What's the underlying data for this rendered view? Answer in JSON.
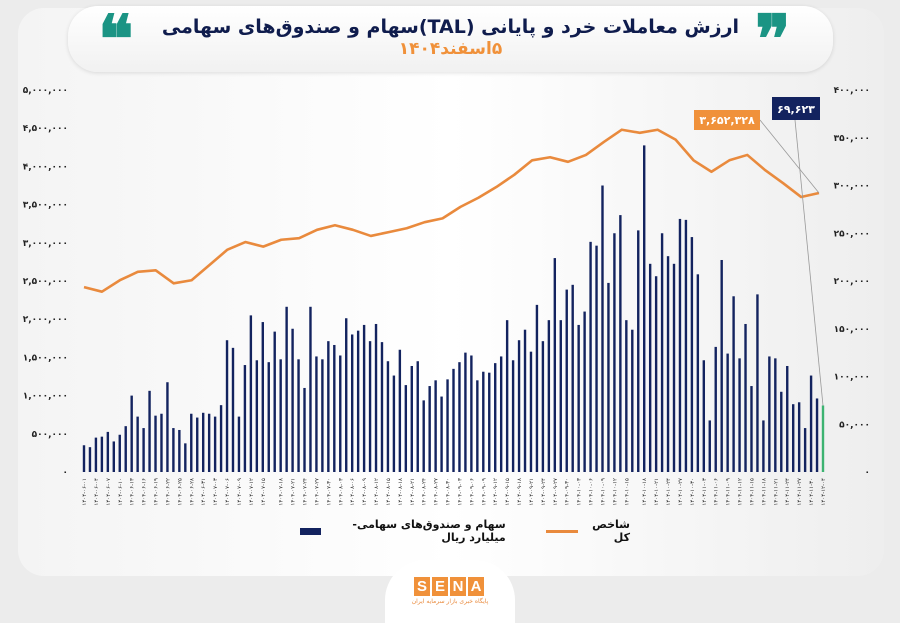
{
  "header": {
    "title": "ارزش معاملات خرد و پایانی (TAL)سهام و صندوق‌های سهامی",
    "subtitle": "۵اسفند۱۴۰۴",
    "quote_open": "❝",
    "quote_close": "❞"
  },
  "brand": {
    "logo_letters": [
      "S",
      "E",
      "N",
      "A"
    ],
    "logo_tagline": "پایگاه خبری بازار سرمایه ایران",
    "color": "#f0913a"
  },
  "colors": {
    "bars": "#13235f",
    "last_bar": "#3cb371",
    "line": "#e98a3d",
    "accent": "#1b9484",
    "callout_line_bg": "#f0913a",
    "callout_bar_bg": "#13235f"
  },
  "chart_data": {
    "type": "bar+line",
    "title": "ارزش معاملات خرد و پایانی (TAL)سهام و صندوق‌های سهامی",
    "legend": {
      "position": "bottom",
      "entries": [
        "شاخص کل",
        "سهام و صندوق‌های سهامی- میلیارد ریال"
      ]
    },
    "grid": false,
    "left_axis": {
      "range": [
        0,
        5000000
      ],
      "ticks": [
        "۰",
        "۵۰۰,۰۰۰",
        "۱,۰۰۰,۰۰۰",
        "۱,۵۰۰,۰۰۰",
        "۲,۰۰۰,۰۰۰",
        "۲,۵۰۰,۰۰۰",
        "۳,۰۰۰,۰۰۰",
        "۳,۵۰۰,۰۰۰",
        "۴,۰۰۰,۰۰۰",
        "۴,۵۰۰,۰۰۰",
        "۵,۰۰۰,۰۰۰"
      ]
    },
    "right_axis": {
      "range": [
        0,
        400000
      ],
      "ticks": [
        "۰",
        "۵۰,۰۰۰",
        "۱۰۰,۰۰۰",
        "۱۵۰,۰۰۰",
        "۲۰۰,۰۰۰",
        "۲۵۰,۰۰۰",
        "۳۰۰,۰۰۰",
        "۳۵۰,۰۰۰",
        "۴۰۰,۰۰۰"
      ]
    },
    "x_tick_labels": [
      "۱۴۰۴-۰۶-۰۱",
      "۱۴۰۴-۰۶-۰۴",
      "۱۴۰۴-۰۶-۰۷",
      "۱۴۰۴-۰۶-۱۰",
      "۱۴۰۴-۰۶-۱۳",
      "۱۴۰۴-۰۶-۱۶",
      "۱۴۰۴-۰۶-۱۹",
      "۱۴۰۴-۰۶-۲۲",
      "۱۴۰۴-۰۶-۲۵",
      "۱۴۰۴-۰۶-۲۸",
      "۱۴۰۴-۰۶-۳۱",
      "۱۴۰۴-۰۷-۰۳",
      "۱۴۰۴-۰۷-۰۶",
      "۱۴۰۴-۰۷-۰۹",
      "۱۴۰۴-۰۷-۱۲",
      "۱۴۰۴-۰۷-۱۵",
      "۱۴۰۴-۰۷-۱۸",
      "۱۴۰۴-۰۷-۲۱",
      "۱۴۰۴-۰۷-۲۴",
      "۱۴۰۴-۰۷-۲۷",
      "۱۴۰۴-۰۷-۳۰",
      "۱۴۰۴-۰۸-۰۳",
      "۱۴۰۴-۰۸-۰۶",
      "۱۴۰۴-۰۸-۰۹",
      "۱۴۰۴-۰۸-۱۲",
      "۱۴۰۴-۰۸-۱۵",
      "۱۴۰۴-۰۸-۱۸",
      "۱۴۰۴-۰۸-۲۱",
      "۱۴۰۴-۰۸-۲۴",
      "۱۴۰۴-۰۸-۲۷",
      "۱۴۰۴-۰۸-۳۰",
      "۱۴۰۴-۰۹-۰۳",
      "۱۴۰۴-۰۹-۰۶",
      "۱۴۰۴-۰۹-۰۹",
      "۱۴۰۴-۰۹-۱۲",
      "۱۴۰۴-۰۹-۱۵",
      "۱۴۰۴-۰۹-۱۸",
      "۱۴۰۴-۰۹-۲۱",
      "۱۴۰۴-۰۹-۲۴",
      "۱۴۰۴-۰۹-۲۷",
      "۱۴۰۴-۰۹-۳۰",
      "۱۴۰۴-۱۰-۰۳",
      "۱۴۰۴-۱۰-۰۶",
      "۱۴۰۴-۱۰-۰۹",
      "۱۴۰۴-۱۰-۱۲",
      "۱۴۰۴-۱۰-۱۵",
      "۱۴۰۴-۱۰-۱۸",
      "۱۴۰۴-۱۰-۲۱",
      "۱۴۰۴-۱۰-۲۴",
      "۱۴۰۴-۱۰-۲۷",
      "۱۴۰۴-۱۰-۳۰",
      "۱۴۰۴-۱۱-۰۳",
      "۱۴۰۴-۱۱-۰۶",
      "۱۴۰۴-۱۱-۰۹",
      "۱۴۰۴-۱۱-۱۲",
      "۱۴۰۴-۱۱-۱۵",
      "۱۴۰۴-۱۱-۱۸",
      "۱۴۰۴-۱۱-۲۱",
      "۱۴۰۴-۱۱-۲۴",
      "۱۴۰۴-۱۱-۲۷",
      "۱۴۰۴-۱۱-۳۰",
      "۱۴۰۴-۱۲-۰۴"
    ],
    "series": [
      {
        "name": "سهام و صندوق‌های سهامی- میلیارد ریال",
        "type": "bar",
        "axis": "right",
        "values": [
          28000,
          26000,
          36000,
          37000,
          42000,
          32000,
          39000,
          48000,
          80000,
          58000,
          46000,
          85000,
          59000,
          61000,
          94000,
          46000,
          44000,
          30000,
          61000,
          57000,
          62000,
          61000,
          58000,
          70000,
          138000,
          130000,
          58000,
          112000,
          164000,
          117000,
          157000,
          115000,
          147000,
          118000,
          173000,
          150000,
          118000,
          88000,
          173000,
          121000,
          118000,
          137000,
          133000,
          122000,
          161000,
          144000,
          148000,
          154000,
          137000,
          155000,
          136000,
          116000,
          101000,
          128000,
          91000,
          111000,
          116000,
          75000,
          90000,
          96000,
          79000,
          97000,
          108000,
          115000,
          125000,
          122000,
          96000,
          105000,
          104000,
          114000,
          121000,
          159000,
          117000,
          138000,
          149000,
          126000,
          175000,
          137000,
          159000,
          224000,
          159000,
          191000,
          196000,
          154000,
          168000,
          241000,
          237000,
          300000,
          198000,
          250000,
          269000,
          159000,
          149000,
          253000,
          342000,
          218000,
          205000,
          250000,
          226000,
          218000,
          265000,
          264000,
          246000,
          207000,
          117000,
          54000,
          131000,
          222000,
          124000,
          184000,
          119000,
          155000,
          90000,
          186000,
          54000,
          121000,
          119000,
          84000,
          111000,
          71000,
          73000,
          46000,
          101000,
          77000,
          69623
        ]
      },
      {
        "name": "شاخص کل",
        "type": "line",
        "axis": "left",
        "values": [
          2420000,
          2360000,
          2510000,
          2620000,
          2640000,
          2470000,
          2510000,
          2710000,
          2910000,
          3010000,
          2950000,
          3040000,
          3060000,
          3170000,
          3230000,
          3170000,
          3090000,
          3140000,
          3190000,
          3270000,
          3320000,
          3470000,
          3590000,
          3730000,
          3890000,
          4080000,
          4120000,
          4060000,
          4150000,
          4320000,
          4480000,
          4440000,
          4480000,
          4350000,
          4080000,
          3930000,
          4080000,
          4150000,
          3950000,
          3780000,
          3600000,
          3652328
        ]
      }
    ],
    "callouts": {
      "line_last": "۳,۶۵۲,۳۲۸",
      "bar_last": "۶۹,۶۲۳"
    }
  }
}
